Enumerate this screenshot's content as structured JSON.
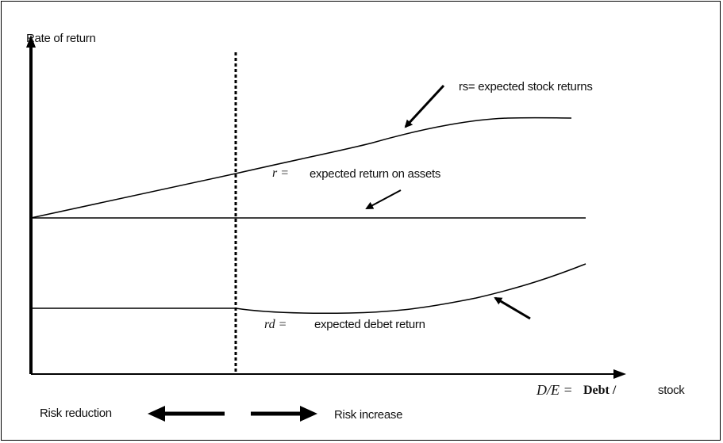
{
  "y_axis_label": "Rate of return",
  "rs_label": "rs= expected stock returns",
  "r_symbol": "r =",
  "r_label": "expected return on assets",
  "rd_symbol": "rd =",
  "rd_label": "expected debet return",
  "x_axis_ratio_symbol": "D/E =",
  "x_axis_ratio_debt": "Debt /",
  "x_axis_ratio_stock": "stock",
  "risk_reduction_label": "Risk reduction",
  "risk_increase_label": "Risk increase"
}
